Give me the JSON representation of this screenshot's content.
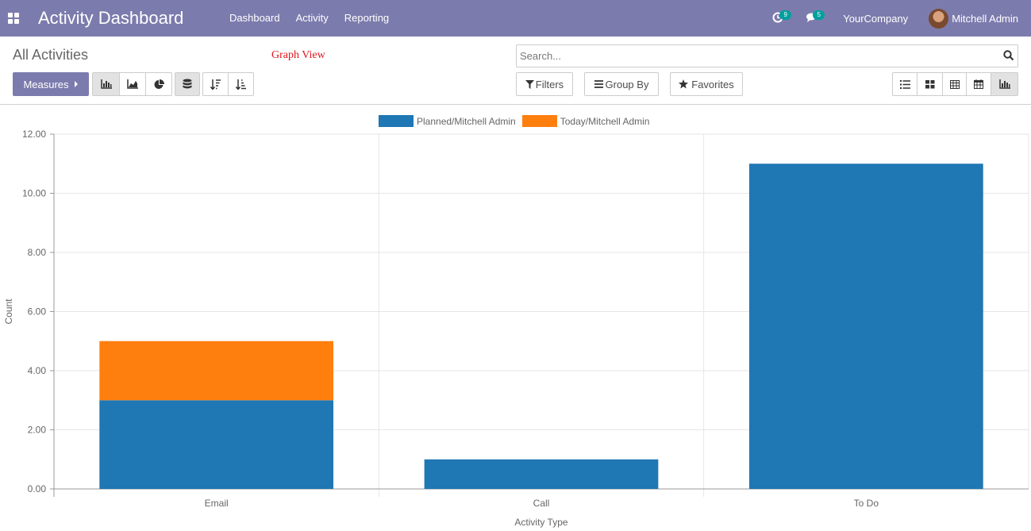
{
  "navbar": {
    "brand": "Activity Dashboard",
    "menu": [
      "Dashboard",
      "Activity",
      "Reporting"
    ],
    "activity_count": "9",
    "message_count": "5",
    "company": "YourCompany",
    "user": "Mitchell Admin"
  },
  "control_panel": {
    "breadcrumb": "All Activities",
    "annotation": "Graph View",
    "search_placeholder": "Search...",
    "measures_label": "Measures",
    "filters_label": "Filters",
    "group_by_label": "Group By",
    "favorites_label": "Favorites"
  },
  "colors": {
    "navbar": "#7c7bad",
    "series_planned": "#1f77b4",
    "series_today": "#ff7f0e",
    "badge": "#00a09d"
  },
  "chart_data": {
    "type": "bar",
    "stacked": true,
    "categories": [
      "Email",
      "Call",
      "To Do"
    ],
    "series": [
      {
        "name": "Planned/Mitchell Admin",
        "values": [
          3,
          1,
          11
        ],
        "color": "#1f77b4"
      },
      {
        "name": "Today/Mitchell Admin",
        "values": [
          2,
          0,
          0
        ],
        "color": "#ff7f0e"
      }
    ],
    "xlabel": "Activity Type",
    "ylabel": "Count",
    "ylim": [
      0,
      12
    ],
    "yticks": [
      "0.00",
      "2.00",
      "4.00",
      "6.00",
      "8.00",
      "10.00",
      "12.00"
    ],
    "grid": true,
    "legend_position": "top-center"
  }
}
